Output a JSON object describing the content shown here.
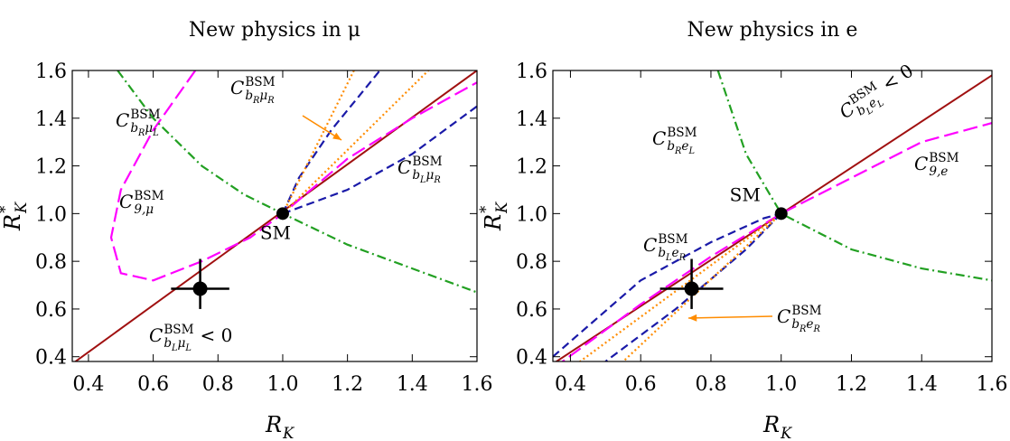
{
  "chart_data": [
    {
      "type": "line",
      "title": "New physics in μ",
      "xlabel": {
        "main": "R",
        "sub": "K"
      },
      "ylabel": {
        "main": "R",
        "sub": "K",
        "sup": "*"
      },
      "xlim": [
        0.35,
        1.6
      ],
      "ylim": [
        0.38,
        1.6
      ],
      "xticks": [
        0.4,
        0.6,
        0.8,
        {
          "value": 1,
          "label": "1.0"
        },
        1.2,
        1.4,
        1.6
      ],
      "yticks": [
        0.4,
        0.6,
        0.8,
        {
          "value": 1,
          "label": "1.0"
        },
        1.2,
        1.4,
        1.6
      ],
      "series": [
        {
          "label": {
            "main": "C",
            "sup": "BSM",
            "sub": [
              [
                "b",
                "L"
              ],
              [
                "μ",
                "L"
              ]
            ],
            "suffix": "< 0"
          },
          "color": "#a01010",
          "dash": "solid",
          "x": [
            0.35,
            1.6
          ],
          "y": [
            0.37,
            1.6
          ]
        },
        {
          "label": {
            "main": "C",
            "sup": "BSM",
            "sub": [
              [
                "9,μ"
              ]
            ]
          },
          "color": "#ff00ff",
          "dash": "longdash",
          "x": [
            0.73,
            0.6,
            0.5,
            0.47,
            0.5,
            0.6,
            0.75,
            0.9,
            1.0,
            1.2,
            1.4,
            1.6
          ],
          "y": [
            1.6,
            1.35,
            1.1,
            0.9,
            0.75,
            0.72,
            0.8,
            0.9,
            1.0,
            1.23,
            1.4,
            1.55
          ]
        },
        {
          "label": {
            "main": "C",
            "sup": "BSM",
            "sub": [
              [
                "b",
                "R"
              ],
              [
                "μ",
                "L"
              ]
            ]
          },
          "color": "#22a022",
          "dash": "dashdot",
          "x": [
            0.49,
            0.6,
            0.75,
            0.88,
            1.0,
            1.2,
            1.4,
            1.6
          ],
          "y": [
            1.6,
            1.4,
            1.2,
            1.08,
            1.0,
            0.87,
            0.77,
            0.67
          ]
        },
        {
          "label": {
            "main": "C",
            "sup": "BSM",
            "sub": [
              [
                "b",
                "L"
              ],
              [
                "μ",
                "R"
              ]
            ]
          },
          "color": "#1a1aa8",
          "dash": "dashed",
          "x": [
            1.0,
            1.05,
            1.15,
            1.3,
            null,
            1.0,
            1.2,
            1.4,
            1.6
          ],
          "y": [
            1.0,
            1.15,
            1.35,
            1.6,
            null,
            1.0,
            1.1,
            1.25,
            1.45
          ]
        },
        {
          "label": {
            "main": "C",
            "sup": "BSM",
            "sub": [
              [
                "b",
                "R"
              ],
              [
                "μ",
                "R"
              ]
            ]
          },
          "color": "#ff8c00",
          "dash": "dotted",
          "x": [
            1.0,
            1.22,
            null,
            1.0,
            1.45
          ],
          "y": [
            1.0,
            1.6,
            null,
            1.0,
            1.6
          ]
        }
      ],
      "sm": {
        "x": 1,
        "y": 1,
        "label": "SM"
      },
      "measurement": {
        "x": 0.745,
        "y": 0.685,
        "x_low": 0.655,
        "x_high": 0.835,
        "y_low": 0.6,
        "y_high": 0.81
      }
    },
    {
      "type": "line",
      "title": "New physics in e",
      "xlabel": {
        "main": "R",
        "sub": "K"
      },
      "ylabel": {
        "main": "R",
        "sub": "K",
        "sup": "*"
      },
      "xlim": [
        0.35,
        1.6
      ],
      "ylim": [
        0.38,
        1.6
      ],
      "xticks": [
        0.4,
        0.6,
        0.8,
        {
          "value": 1,
          "label": "1.0"
        },
        1.2,
        1.4,
        1.6
      ],
      "yticks": [
        0.4,
        0.6,
        0.8,
        {
          "value": 1,
          "label": "1.0"
        },
        1.2,
        1.4,
        1.6
      ],
      "series": [
        {
          "label": {
            "main": "C",
            "sup": "BSM",
            "sub": [
              [
                "b",
                "L"
              ],
              [
                "e",
                "L"
              ]
            ],
            "suffix": "< 0"
          },
          "color": "#a01010",
          "dash": "solid",
          "x": [
            0.35,
            1.6
          ],
          "y": [
            0.37,
            1.58
          ]
        },
        {
          "label": {
            "main": "C",
            "sup": "BSM",
            "sub": [
              [
                "9,e"
              ]
            ]
          },
          "color": "#ff00ff",
          "dash": "longdash",
          "x": [
            0.35,
            0.6,
            0.8,
            1.0,
            1.2,
            1.4,
            1.6
          ],
          "y": [
            0.35,
            0.62,
            0.82,
            1.0,
            1.15,
            1.3,
            1.38
          ]
        },
        {
          "label": {
            "main": "C",
            "sup": "BSM",
            "sub": [
              [
                "b",
                "R"
              ],
              [
                "e",
                "L"
              ]
            ]
          },
          "color": "#22a022",
          "dash": "dashdot",
          "x": [
            0.82,
            0.9,
            1.0,
            1.2,
            1.4,
            1.6
          ],
          "y": [
            1.6,
            1.25,
            1.0,
            0.85,
            0.77,
            0.72
          ]
        },
        {
          "label": {
            "main": "C",
            "sup": "BSM",
            "sub": [
              [
                "b",
                "L"
              ],
              [
                "e",
                "R"
              ]
            ]
          },
          "color": "#1a1aa8",
          "dash": "dashed",
          "x": [
            0.35,
            0.6,
            0.8,
            0.95,
            1.0,
            null,
            1.0,
            0.9,
            0.7,
            0.5
          ],
          "y": [
            0.4,
            0.72,
            0.88,
            0.98,
            1.0,
            null,
            1.0,
            0.85,
            0.6,
            0.38
          ]
        },
        {
          "label": {
            "main": "C",
            "sup": "BSM",
            "sub": [
              [
                "b",
                "R"
              ],
              [
                "e",
                "R"
              ]
            ]
          },
          "color": "#ff8c00",
          "dash": "dotted",
          "x": [
            1.0,
            0.4,
            null,
            1.0,
            0.55
          ],
          "y": [
            1.0,
            0.35,
            null,
            1.0,
            0.38
          ]
        }
      ],
      "sm": {
        "x": 1,
        "y": 1,
        "label": "SM"
      },
      "measurement": {
        "x": 0.745,
        "y": 0.685,
        "x_low": 0.655,
        "x_high": 0.835,
        "y_low": 0.6,
        "y_high": 0.81
      }
    }
  ]
}
